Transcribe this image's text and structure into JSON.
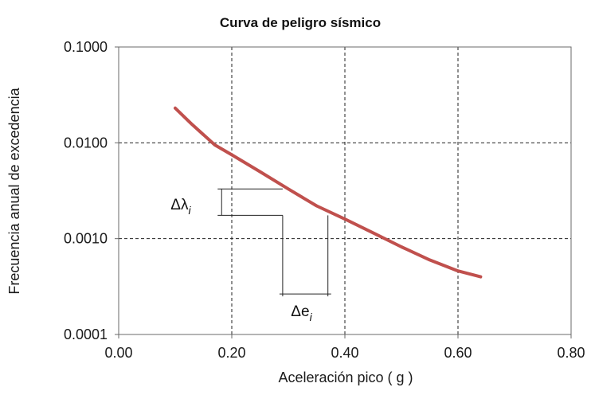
{
  "chart_data": {
    "type": "line",
    "title": "Curva de peligro sísmico",
    "xlabel": "Aceleración pico ( g )",
    "ylabel": "Frecuencia anual de excedencia",
    "xlim": [
      0.0,
      0.8
    ],
    "ylim": [
      0.0001,
      0.1
    ],
    "y_scale": "log",
    "grid": true,
    "grid_style": "dashed",
    "x_ticks": [
      "0.00",
      "0.20",
      "0.40",
      "0.60",
      "0.80"
    ],
    "x_tick_values": [
      0.0,
      0.2,
      0.4,
      0.6,
      0.8
    ],
    "y_ticks": [
      "0.1000",
      "0.0100",
      "0.0010",
      "0.0001"
    ],
    "y_tick_values": [
      0.1,
      0.01,
      0.001,
      0.0001
    ],
    "series": [
      {
        "color": "#c0504d",
        "x": [
          0.1,
          0.13,
          0.17,
          0.2,
          0.25,
          0.3,
          0.35,
          0.4,
          0.45,
          0.5,
          0.55,
          0.6,
          0.64
        ],
        "y": [
          0.023,
          0.0155,
          0.0095,
          0.0075,
          0.005,
          0.0033,
          0.0022,
          0.0016,
          0.00115,
          0.00082,
          0.0006,
          0.00046,
          0.0004
        ]
      }
    ],
    "annotations": [
      {
        "label": "Δλ",
        "subscript": "i",
        "kind": "vertical-interval",
        "x_from": 0.175,
        "x_to": 0.29,
        "y_top": 0.0033,
        "y_bottom": 0.00175
      },
      {
        "label": "Δe",
        "subscript": "i",
        "kind": "horizontal-interval",
        "x_from": 0.29,
        "x_to": 0.37,
        "y_top": 0.00175,
        "y_bottom": 0.00025
      }
    ]
  }
}
